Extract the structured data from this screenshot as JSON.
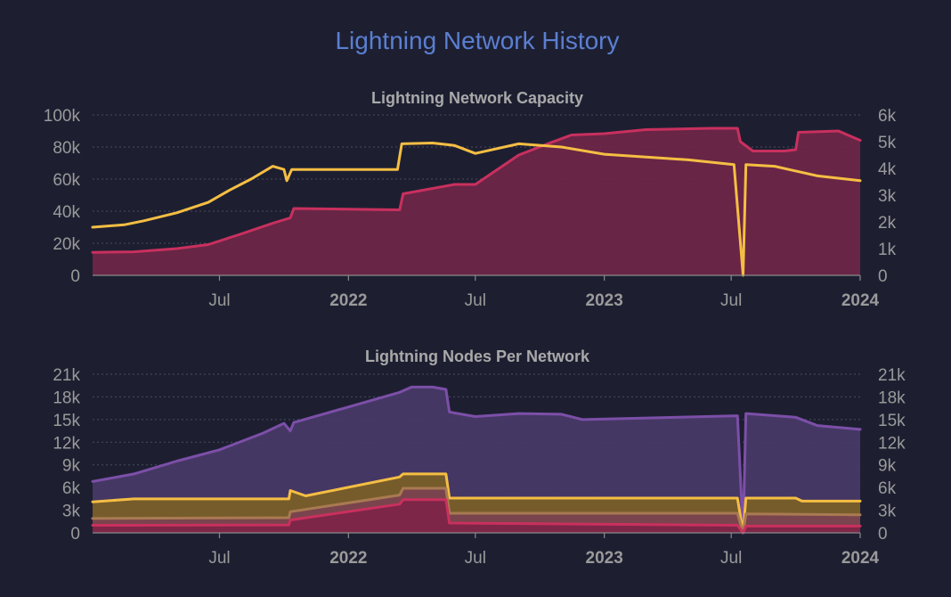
{
  "title": "Lightning Network History",
  "chart_data": [
    {
      "type": "area",
      "title": "Lightning Network Capacity",
      "x_range": [
        "2021-01-01",
        "2024-01-01"
      ],
      "x_ticks": [
        {
          "date": "2021-07-01",
          "label": "Jul",
          "bold": false
        },
        {
          "date": "2022-01-01",
          "label": "2022",
          "bold": true
        },
        {
          "date": "2022-07-01",
          "label": "Jul",
          "bold": false
        },
        {
          "date": "2023-01-01",
          "label": "2023",
          "bold": true
        },
        {
          "date": "2023-07-01",
          "label": "Jul",
          "bold": false
        },
        {
          "date": "2024-01-01",
          "label": "2024",
          "bold": true
        }
      ],
      "y_left": {
        "range": [
          0,
          100000
        ],
        "ticks": [
          0,
          20000,
          40000,
          60000,
          80000,
          100000
        ],
        "labels": [
          "0",
          "20k",
          "40k",
          "60k",
          "80k",
          "100k"
        ]
      },
      "y_right": {
        "range": [
          0,
          6000
        ],
        "ticks": [
          0,
          1000,
          2000,
          3000,
          4000,
          5000,
          6000
        ],
        "labels": [
          "0",
          "1k",
          "2k",
          "3k",
          "4k",
          "5k",
          "6k"
        ]
      },
      "grid": true,
      "series": [
        {
          "color": "#c9305e",
          "fill": "#6f2648",
          "axis": "right",
          "area": true,
          "points": [
            [
              "2021-01-01",
              860
            ],
            [
              "2021-03-01",
              880
            ],
            [
              "2021-05-01",
              1000
            ],
            [
              "2021-06-15",
              1150
            ],
            [
              "2021-08-01",
              1550
            ],
            [
              "2021-09-15",
              1950
            ],
            [
              "2021-10-10",
              2150
            ],
            [
              "2021-10-15",
              2500
            ],
            [
              "2022-03-15",
              2450
            ],
            [
              "2022-03-20",
              3050
            ],
            [
              "2022-06-01",
              3400
            ],
            [
              "2022-07-01",
              3400
            ],
            [
              "2022-09-01",
              4500
            ],
            [
              "2022-10-15",
              4950
            ],
            [
              "2022-11-15",
              5250
            ],
            [
              "2023-01-01",
              5300
            ],
            [
              "2023-03-01",
              5450
            ],
            [
              "2023-06-01",
              5500
            ],
            [
              "2023-07-10",
              5500
            ],
            [
              "2023-07-14",
              5000
            ],
            [
              "2023-08-01",
              4650
            ],
            [
              "2023-09-15",
              4650
            ],
            [
              "2023-10-01",
              4700
            ],
            [
              "2023-10-05",
              5350
            ],
            [
              "2023-12-01",
              5400
            ],
            [
              "2024-01-01",
              5050
            ]
          ]
        },
        {
          "color": "#f5be43",
          "axis": "left",
          "area": false,
          "points": [
            [
              "2021-01-01",
              30000
            ],
            [
              "2021-02-15",
              31500
            ],
            [
              "2021-03-15",
              34000
            ],
            [
              "2021-05-01",
              39000
            ],
            [
              "2021-06-15",
              45500
            ],
            [
              "2021-07-15",
              53000
            ],
            [
              "2021-08-15",
              60000
            ],
            [
              "2021-09-15",
              68000
            ],
            [
              "2021-10-01",
              66000
            ],
            [
              "2021-10-05",
              59000
            ],
            [
              "2021-10-12",
              66000
            ],
            [
              "2022-03-12",
              66000
            ],
            [
              "2022-03-18",
              82000
            ],
            [
              "2022-05-01",
              82500
            ],
            [
              "2022-06-01",
              81000
            ],
            [
              "2022-07-01",
              76000
            ],
            [
              "2022-09-01",
              82000
            ],
            [
              "2022-11-01",
              80000
            ],
            [
              "2023-01-01",
              75500
            ],
            [
              "2023-05-01",
              72000
            ],
            [
              "2023-07-05",
              69000
            ],
            [
              "2023-07-18",
              0
            ],
            [
              "2023-07-22",
              69000
            ],
            [
              "2023-09-01",
              68000
            ],
            [
              "2023-11-01",
              62000
            ],
            [
              "2024-01-01",
              59000
            ]
          ]
        }
      ]
    },
    {
      "type": "area",
      "title": "Lightning Nodes Per Network",
      "x_range": [
        "2021-01-01",
        "2024-01-01"
      ],
      "x_ticks": [
        {
          "date": "2021-07-01",
          "label": "Jul",
          "bold": false
        },
        {
          "date": "2022-01-01",
          "label": "2022",
          "bold": true
        },
        {
          "date": "2022-07-01",
          "label": "Jul",
          "bold": false
        },
        {
          "date": "2023-01-01",
          "label": "2023",
          "bold": true
        },
        {
          "date": "2023-07-01",
          "label": "Jul",
          "bold": false
        },
        {
          "date": "2024-01-01",
          "label": "2024",
          "bold": true
        }
      ],
      "y_left": {
        "range": [
          0,
          21000
        ],
        "ticks": [
          0,
          3000,
          6000,
          9000,
          12000,
          15000,
          18000,
          21000
        ],
        "labels": [
          "0",
          "3k",
          "6k",
          "9k",
          "12k",
          "15k",
          "18k",
          "21k"
        ]
      },
      "y_right": {
        "range": [
          0,
          21000
        ],
        "ticks": [
          0,
          3000,
          6000,
          9000,
          12000,
          15000,
          18000,
          21000
        ],
        "labels": [
          "0",
          "3k",
          "6k",
          "9k",
          "12k",
          "15k",
          "18k",
          "21k"
        ]
      },
      "grid": true,
      "series": [
        {
          "color": "#7c4fa8",
          "fill": "#493a68",
          "area": true,
          "points": [
            [
              "2021-01-01",
              6800
            ],
            [
              "2021-03-01",
              7800
            ],
            [
              "2021-05-01",
              9500
            ],
            [
              "2021-07-01",
              11000
            ],
            [
              "2021-09-01",
              13200
            ],
            [
              "2021-10-01",
              14500
            ],
            [
              "2021-10-10",
              13500
            ],
            [
              "2021-10-15",
              14600
            ],
            [
              "2022-03-15",
              18600
            ],
            [
              "2022-04-01",
              19300
            ],
            [
              "2022-05-01",
              19300
            ],
            [
              "2022-05-20",
              19000
            ],
            [
              "2022-05-25",
              16000
            ],
            [
              "2022-07-01",
              15400
            ],
            [
              "2022-09-01",
              15800
            ],
            [
              "2022-11-01",
              15700
            ],
            [
              "2022-12-01",
              15000
            ],
            [
              "2023-07-10",
              15500
            ],
            [
              "2023-07-18",
              0
            ],
            [
              "2023-07-22",
              15800
            ],
            [
              "2023-10-01",
              15300
            ],
            [
              "2023-11-01",
              14200
            ],
            [
              "2024-01-01",
              13700
            ]
          ]
        },
        {
          "color": "#f5be43",
          "fill": "#7b6026",
          "area": true,
          "points": [
            [
              "2021-01-01",
              4100
            ],
            [
              "2021-03-01",
              4500
            ],
            [
              "2021-10-08",
              4500
            ],
            [
              "2021-10-10",
              5600
            ],
            [
              "2021-11-01",
              4900
            ],
            [
              "2022-03-15",
              7400
            ],
            [
              "2022-03-20",
              7800
            ],
            [
              "2022-05-20",
              7800
            ],
            [
              "2022-05-25",
              4600
            ],
            [
              "2023-07-10",
              4600
            ],
            [
              "2023-07-18",
              0
            ],
            [
              "2023-07-22",
              4600
            ],
            [
              "2023-10-01",
              4600
            ],
            [
              "2023-10-10",
              4200
            ],
            [
              "2024-01-01",
              4200
            ]
          ]
        },
        {
          "color": "#a97a52",
          "fill": "#7a4250",
          "area": true,
          "points": [
            [
              "2021-01-01",
              1900
            ],
            [
              "2021-10-08",
              2000
            ],
            [
              "2021-10-10",
              2800
            ],
            [
              "2022-03-15",
              5000
            ],
            [
              "2022-03-20",
              5900
            ],
            [
              "2022-05-20",
              5900
            ],
            [
              "2022-05-25",
              2600
            ],
            [
              "2023-07-10",
              2600
            ],
            [
              "2023-07-18",
              0
            ],
            [
              "2023-07-22",
              2500
            ],
            [
              "2024-01-01",
              2400
            ]
          ]
        },
        {
          "color": "#c9305e",
          "fill": "#7e2446",
          "area": true,
          "points": [
            [
              "2021-01-01",
              1000
            ],
            [
              "2021-10-08",
              1050
            ],
            [
              "2021-10-10",
              1700
            ],
            [
              "2022-03-15",
              3800
            ],
            [
              "2022-03-20",
              4400
            ],
            [
              "2022-05-20",
              4400
            ],
            [
              "2022-05-25",
              1300
            ],
            [
              "2023-07-10",
              1000
            ],
            [
              "2023-07-18",
              0
            ],
            [
              "2023-07-22",
              900
            ],
            [
              "2024-01-01",
              900
            ]
          ]
        }
      ]
    }
  ]
}
